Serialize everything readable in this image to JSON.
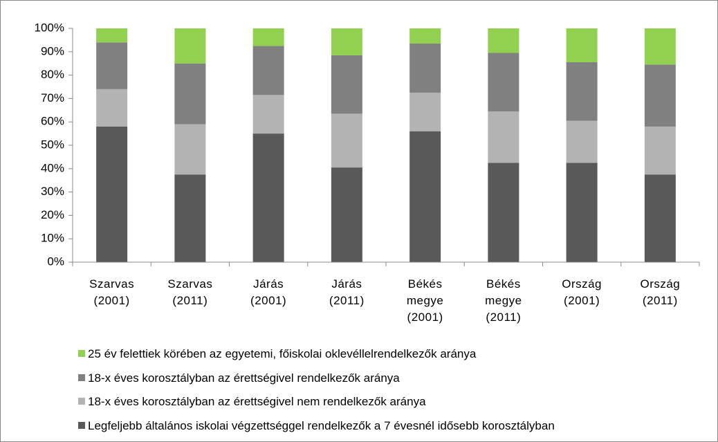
{
  "chart_data": {
    "type": "stacked_bar",
    "categories": [
      "Szarvas (2001)",
      "Szarvas (2011)",
      "Járás (2001)",
      "Járás (2011)",
      "Békés megye (2001)",
      "Békés megye (2011)",
      "Ország (2001)",
      "Ország (2011)"
    ],
    "series": [
      {
        "name": "Legfeljebb általános iskolai végzettséggel rendelkezők a 7 évesnél idősebb korosztályban",
        "color": "#595959",
        "values": [
          58,
          37.5,
          55,
          40.5,
          56,
          42.5,
          42.5,
          37.5
        ]
      },
      {
        "name": "18-x éves korosztályban az érettségivel nem rendelkezők aránya",
        "color": "#b3b3b3",
        "values": [
          16,
          21.5,
          16.5,
          23,
          16.5,
          22,
          18,
          20.5
        ]
      },
      {
        "name": "18-x éves korosztályban az érettségivel rendelkezők aránya",
        "color": "#808080",
        "values": [
          20,
          26,
          21,
          25,
          21,
          25,
          25,
          26.5
        ]
      },
      {
        "name": "25 év felettiek körében az egyetemi, főiskolai oklevéllelrendelkezők aránya",
        "color": "#92d050",
        "values": [
          6,
          15,
          7.5,
          11.5,
          6.5,
          10.5,
          14.5,
          15.5
        ]
      }
    ],
    "ylim": [
      0,
      100
    ],
    "yticks": [
      {
        "value": 0,
        "label": "0%"
      },
      {
        "value": 10,
        "label": "10%"
      },
      {
        "value": 20,
        "label": "20%"
      },
      {
        "value": 30,
        "label": "30%"
      },
      {
        "value": 40,
        "label": "40%"
      },
      {
        "value": 50,
        "label": "50%"
      },
      {
        "value": 60,
        "label": "60%"
      },
      {
        "value": 70,
        "label": "70%"
      },
      {
        "value": 80,
        "label": "80%"
      },
      {
        "value": 90,
        "label": "90%"
      },
      {
        "value": 100,
        "label": "100%"
      }
    ],
    "grid": false,
    "legend": "bottom"
  }
}
